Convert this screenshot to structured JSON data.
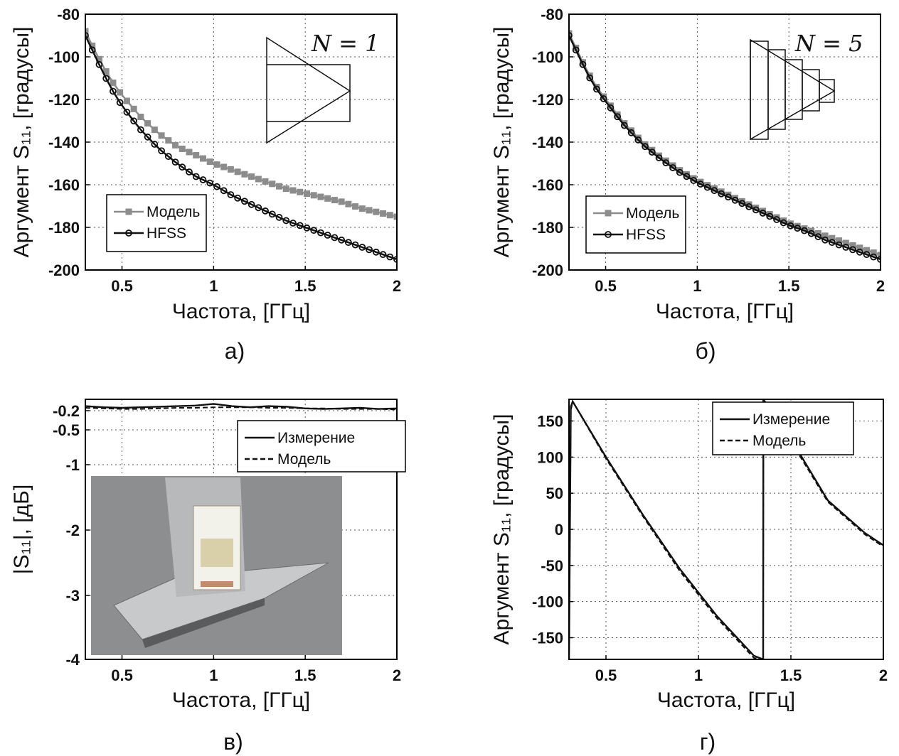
{
  "chart_data": [
    {
      "id": "a",
      "type": "line",
      "caption": "а)",
      "xlabel": "Частота, [ГГц]",
      "ylabel": "Аргумент S₁₁, [градусы]",
      "xlim": [
        0.3,
        2.0
      ],
      "ylim": [
        -200,
        -80
      ],
      "xticks": [
        0.5,
        1,
        1.5,
        2
      ],
      "xtick_labels": [
        "0.5",
        "1",
        "1.5",
        "2"
      ],
      "yticks": [
        -200,
        -180,
        -160,
        -140,
        -120,
        -100,
        -80
      ],
      "ytick_labels": [
        "-200",
        "-180",
        "-160",
        "-140",
        "-120",
        "-100",
        "-80"
      ],
      "grid": true,
      "legend_position": "bottom-left",
      "annotation": "N = 1",
      "inset": "triangle-element-N1",
      "x": [
        0.3,
        0.35,
        0.4,
        0.45,
        0.5,
        0.6,
        0.7,
        0.8,
        0.9,
        1.0,
        1.1,
        1.2,
        1.3,
        1.4,
        1.5,
        1.6,
        1.7,
        1.8,
        1.9,
        2.0
      ],
      "series": [
        {
          "name": "Модель",
          "color": "#8c8c8c",
          "marker": "square",
          "values": [
            -88,
            -97,
            -105,
            -112,
            -118,
            -128,
            -136,
            -142,
            -146,
            -150,
            -153,
            -156,
            -159,
            -162,
            -164,
            -166,
            -168,
            -171,
            -173,
            -175
          ]
        },
        {
          "name": "HFSS",
          "color": "#111111",
          "marker": "circle",
          "values": [
            -90,
            -99,
            -108,
            -116,
            -123,
            -134,
            -143,
            -150,
            -156,
            -160,
            -165,
            -169,
            -173,
            -177,
            -180,
            -183,
            -186,
            -189,
            -192,
            -195
          ]
        }
      ]
    },
    {
      "id": "b",
      "type": "line",
      "caption": "б)",
      "xlabel": "Частота, [ГГц]",
      "ylabel": "Аргумент S₁₁, [градусы]",
      "xlim": [
        0.3,
        2.0
      ],
      "ylim": [
        -200,
        -80
      ],
      "xticks": [
        0.5,
        1,
        1.5,
        2
      ],
      "xtick_labels": [
        "0.5",
        "1",
        "1.5",
        "2"
      ],
      "yticks": [
        -200,
        -180,
        -160,
        -140,
        -120,
        -100,
        -80
      ],
      "ytick_labels": [
        "-200",
        "-180",
        "-160",
        "-140",
        "-120",
        "-100",
        "-80"
      ],
      "grid": true,
      "legend_position": "bottom-left",
      "annotation": "N = 5",
      "inset": "stepped-triangle-element-N5",
      "x": [
        0.3,
        0.35,
        0.4,
        0.45,
        0.5,
        0.6,
        0.7,
        0.8,
        0.9,
        1.0,
        1.1,
        1.2,
        1.3,
        1.4,
        1.5,
        1.6,
        1.7,
        1.8,
        1.9,
        2.0
      ],
      "series": [
        {
          "name": "Модель",
          "color": "#8c8c8c",
          "marker": "square",
          "values": [
            -89,
            -98,
            -107,
            -114,
            -120,
            -131,
            -140,
            -147,
            -153,
            -158,
            -162,
            -166,
            -170,
            -174,
            -178,
            -181,
            -184,
            -187,
            -190,
            -193
          ]
        },
        {
          "name": "HFSS",
          "color": "#111111",
          "marker": "circle",
          "values": [
            -90,
            -99,
            -108,
            -115,
            -121,
            -132,
            -141,
            -148,
            -154,
            -159,
            -163,
            -167,
            -171,
            -175,
            -179,
            -182,
            -186,
            -189,
            -192,
            -195
          ]
        }
      ]
    },
    {
      "id": "c",
      "type": "line",
      "caption": "в)",
      "xlabel": "Частота, [ГГц]",
      "ylabel": "|S₁₁|, [дБ]",
      "xlim": [
        0.3,
        2.0
      ],
      "ylim": [
        -4,
        0
      ],
      "xticks": [
        0.5,
        1,
        1.5,
        2
      ],
      "xtick_labels": [
        "0.5",
        "1",
        "1.5",
        "2"
      ],
      "yticks": [
        -4,
        -3,
        -2,
        -1,
        -0.5,
        -0.2
      ],
      "ytick_labels": [
        "-4",
        "-3",
        "-2",
        "-1",
        "-0.5",
        "-0.2"
      ],
      "grid": true,
      "legend_position": "top-right",
      "inset": "photo-of-antenna-on-ground-plane",
      "x": [
        0.3,
        0.4,
        0.5,
        0.6,
        0.7,
        0.8,
        0.9,
        1.0,
        1.1,
        1.2,
        1.3,
        1.4,
        1.5,
        1.6,
        1.7,
        1.8,
        1.9,
        2.0
      ],
      "series": [
        {
          "name": "Измерение",
          "color": "#111111",
          "dash": "solid",
          "values": [
            -0.12,
            -0.14,
            -0.15,
            -0.14,
            -0.13,
            -0.12,
            -0.11,
            -0.08,
            -0.12,
            -0.14,
            -0.12,
            -0.13,
            -0.16,
            -0.17,
            -0.16,
            -0.15,
            -0.17,
            -0.16
          ]
        },
        {
          "name": "Модель",
          "color": "#111111",
          "dash": "dashed",
          "values": [
            -0.15,
            -0.16,
            -0.17,
            -0.17,
            -0.16,
            -0.15,
            -0.15,
            -0.14,
            -0.14,
            -0.14,
            -0.15,
            -0.15,
            -0.16,
            -0.16,
            -0.17,
            -0.17,
            -0.17,
            -0.18
          ]
        }
      ]
    },
    {
      "id": "d",
      "type": "line",
      "caption": "г)",
      "xlabel": "Частота, [ГГц]",
      "ylabel": "Аргумент S₁₁, [градусы]",
      "xlim": [
        0.3,
        2.0
      ],
      "ylim": [
        -180,
        180
      ],
      "xticks": [
        0.5,
        1,
        1.5,
        2
      ],
      "xtick_labels": [
        "0.5",
        "1",
        "1.5",
        "2"
      ],
      "yticks": [
        -150,
        -100,
        -50,
        0,
        50,
        100,
        150
      ],
      "ytick_labels": [
        "-150",
        "-100",
        "-50",
        "0",
        "50",
        "100",
        "150"
      ],
      "grid": true,
      "legend_position": "top-right",
      "x": [
        0.3,
        0.31,
        0.32,
        0.5,
        0.7,
        0.9,
        1.1,
        1.3,
        1.35,
        1.351,
        1.5,
        1.7,
        1.9,
        2.0
      ],
      "series": [
        {
          "name": "Измерение",
          "color": "#111111",
          "dash": "solid",
          "values": [
            -180,
            170,
            177,
            100,
            20,
            -55,
            -120,
            -175,
            -180,
            180,
            125,
            40,
            -5,
            -22
          ]
        },
        {
          "name": "Модель",
          "color": "#111111",
          "dash": "dashed",
          "values": [
            -180,
            165,
            177,
            98,
            18,
            -58,
            -123,
            -178,
            -180,
            178,
            122,
            38,
            -7,
            -24
          ]
        }
      ]
    }
  ]
}
